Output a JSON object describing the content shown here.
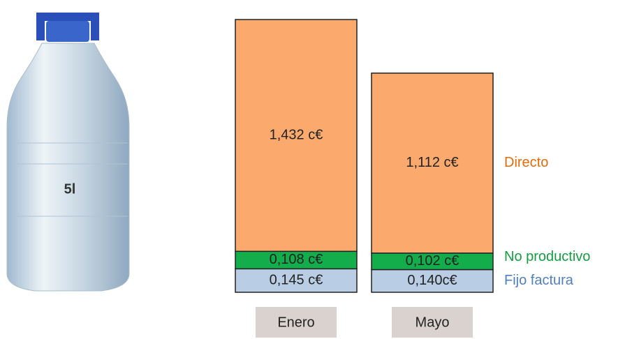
{
  "image_label": "5l",
  "chart_data": {
    "type": "stacked-bar",
    "categories": [
      "Enero",
      "Mayo"
    ],
    "series": [
      {
        "name": "Fijo factura",
        "color": "#b9cde5",
        "label_color": "#4f81bd",
        "values": [
          0.145,
          0.14
        ],
        "value_labels": [
          "0,145 c€",
          "0,140c€"
        ]
      },
      {
        "name": "No productivo",
        "color": "#14ad4c",
        "label_color": "#12a040",
        "values": [
          0.108,
          0.102
        ],
        "value_labels": [
          "0,108 c€",
          "0,102 c€"
        ]
      },
      {
        "name": "Directo",
        "color": "#fba96c",
        "label_color": "#e46c0a",
        "values": [
          1.432,
          1.112
        ],
        "value_labels": [
          "1,432 c€",
          "1,112 c€"
        ]
      }
    ]
  }
}
